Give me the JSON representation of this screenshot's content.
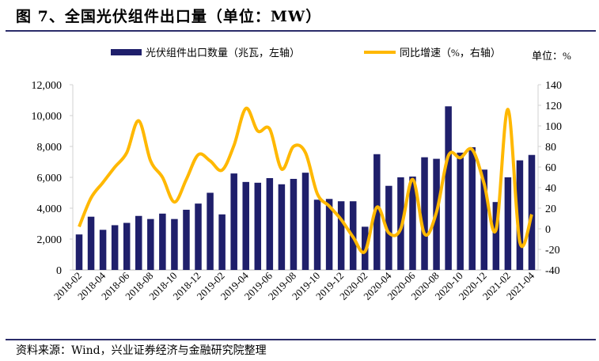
{
  "title": "图 7、全国光伏组件出口量（单位：MW）",
  "source": "资料来源：Wind，兴业证券经济与金融研究院整理",
  "colors": {
    "bar": "#1f1f6b",
    "line": "#ffb800",
    "rule": "#2b2c6a"
  },
  "chart_data": {
    "type": "bar+line",
    "categories": [
      "2018-02",
      "2018-03",
      "2018-04",
      "2018-05",
      "2018-06",
      "2018-07",
      "2018-08",
      "2018-09",
      "2018-10",
      "2018-11",
      "2018-12",
      "2019-01",
      "2019-02",
      "2019-03",
      "2019-04",
      "2019-05",
      "2019-06",
      "2019-07",
      "2019-08",
      "2019-09",
      "2019-10",
      "2019-11",
      "2019-12",
      "2020-01",
      "2020-02",
      "2020-03",
      "2020-04",
      "2020-05",
      "2020-06",
      "2020-07",
      "2020-08",
      "2020-09",
      "2020-10",
      "2020-11",
      "2020-12",
      "2021-01",
      "2021-02",
      "2021-03",
      "2021-04"
    ],
    "x_tick_labels": [
      "2018-02",
      "2018-04",
      "2018-06",
      "2018-08",
      "2018-10",
      "2018-12",
      "2019-02",
      "2019-04",
      "2019-06",
      "2019-08",
      "2019-10",
      "2019-12",
      "2020-02",
      "2020-04",
      "2020-06",
      "2020-08",
      "2020-10",
      "2020-12",
      "2021-02",
      "2021-04"
    ],
    "series": [
      {
        "name": "光伏组件出口数量（兆瓦，左轴）",
        "type": "bar",
        "axis": "left",
        "values": [
          2300,
          3450,
          2600,
          2900,
          3050,
          3500,
          3300,
          3650,
          3300,
          3900,
          4300,
          5000,
          3600,
          6250,
          5700,
          5650,
          5950,
          5550,
          5900,
          6300,
          4550,
          4600,
          4450,
          4450,
          2800,
          7500,
          5450,
          6000,
          6050,
          7300,
          7200,
          10600,
          7600,
          7950,
          6500,
          4400,
          6000,
          7100,
          7450
        ]
      },
      {
        "name": "同比增速（%，右轴）",
        "type": "line",
        "axis": "right",
        "values": [
          2,
          30,
          45,
          60,
          74,
          105,
          66,
          50,
          26,
          48,
          72,
          66,
          57,
          81,
          117,
          95,
          97,
          58,
          80,
          74,
          34,
          22,
          9,
          -8,
          -22,
          21,
          -4,
          0,
          48,
          -5,
          16,
          71,
          69,
          77,
          44,
          -1,
          116,
          -13,
          14
        ]
      }
    ],
    "left_axis": {
      "min": 0,
      "max": 12000,
      "ticks": [
        "0",
        "2,000",
        "4,000",
        "6,000",
        "8,000",
        "10,000",
        "12,000"
      ]
    },
    "right_axis": {
      "min": -40,
      "max": 140,
      "ticks": [
        "-40",
        "-20",
        "0",
        "20",
        "40",
        "60",
        "80",
        "100",
        "120",
        "140"
      ],
      "unit_label": "单位：%"
    },
    "legend": "top",
    "grid": false
  }
}
